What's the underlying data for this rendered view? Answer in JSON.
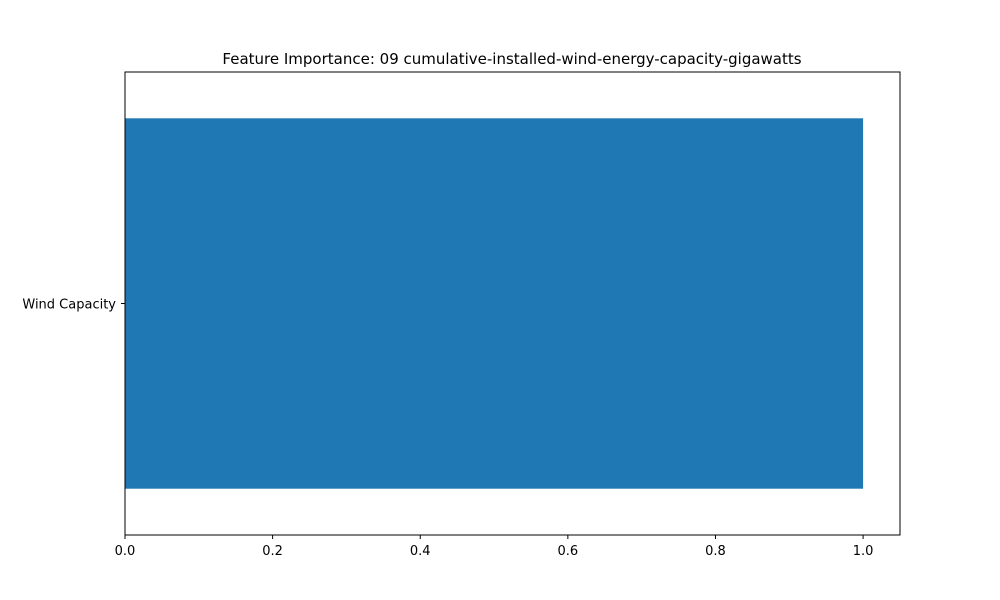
{
  "chart_data": {
    "type": "bar",
    "orientation": "horizontal",
    "title": "Feature Importance: 09 cumulative-installed-wind-energy-capacity-gigawatts",
    "xlabel": "",
    "ylabel": "",
    "categories": [
      "Wind Capacity"
    ],
    "values": [
      1.0
    ],
    "xlim": [
      0,
      1.05
    ],
    "xticks": [
      0.0,
      0.2,
      0.4,
      0.6,
      0.8,
      1.0
    ],
    "xtick_labels": [
      "0.0",
      "0.2",
      "0.4",
      "0.6",
      "0.8",
      "1.0"
    ],
    "grid": false,
    "legend": "none",
    "bar_color": "#1f77b4"
  }
}
